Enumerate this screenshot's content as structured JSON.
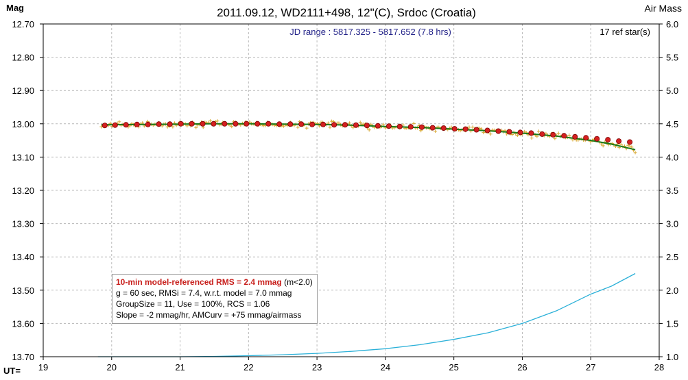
{
  "chart_data": {
    "type": "scatter",
    "title": "2011.09.12, WD2111+498, 12\"(C), Srdoc (Croatia)",
    "subtitle": "JD range : 5817.325 - 5817.652 (7.8 hrs)",
    "ref_stars": "17 ref star(s)",
    "ylabel": "Mag",
    "y2label": "Air Mass",
    "xlabel": "UT=",
    "xlim": [
      19,
      28
    ],
    "ylim": [
      12.7,
      13.7
    ],
    "y_reversed": true,
    "y2lim": [
      1.0,
      6.0
    ],
    "grid": true,
    "x_ticks": [
      "19",
      "20",
      "21",
      "22",
      "23",
      "24",
      "25",
      "26",
      "27",
      "28"
    ],
    "y_ticks": [
      "12.70",
      "12.80",
      "12.90",
      "13.00",
      "13.10",
      "13.20",
      "13.30",
      "13.40",
      "13.50",
      "13.60",
      "13.70"
    ],
    "y2_ticks": [
      "6.0",
      "5.5",
      "5.0",
      "4.5",
      "4.0",
      "3.5",
      "3.0",
      "2.5",
      "2.0",
      "1.5",
      "1.0"
    ],
    "series": [
      {
        "kind": "binned_10min_averages",
        "color": "#d42020",
        "x": [
          19.9,
          20.05,
          20.21,
          20.37,
          20.53,
          20.69,
          20.85,
          21.01,
          21.17,
          21.33,
          21.49,
          21.65,
          21.81,
          21.97,
          22.13,
          22.29,
          22.45,
          22.61,
          22.77,
          22.93,
          23.09,
          23.25,
          23.41,
          23.57,
          23.73,
          23.89,
          24.05,
          24.21,
          24.37,
          24.53,
          24.69,
          24.85,
          25.01,
          25.17,
          25.33,
          25.49,
          25.65,
          25.81,
          25.97,
          26.13,
          26.29,
          26.45,
          26.61,
          26.77,
          26.93,
          27.09,
          27.25,
          27.41,
          27.57
        ],
        "y": [
          13.005,
          13.004,
          13.003,
          13.002,
          13.002,
          13.001,
          13.001,
          13.0,
          13.0,
          13.0,
          13.0,
          13.0,
          13.0,
          13.0,
          13.0,
          13.0,
          13.001,
          13.001,
          13.001,
          13.002,
          13.002,
          13.003,
          13.003,
          13.004,
          13.005,
          13.006,
          13.007,
          13.008,
          13.009,
          13.01,
          13.012,
          13.013,
          13.015,
          13.016,
          13.018,
          13.02,
          13.022,
          13.024,
          13.026,
          13.028,
          13.031,
          13.033,
          13.036,
          13.039,
          13.042,
          13.045,
          13.048,
          13.052,
          13.055
        ]
      },
      {
        "kind": "model_fit",
        "color": "#1a7a1a",
        "x": [
          19.85,
          20.5,
          21.0,
          21.5,
          22.0,
          22.5,
          23.0,
          23.5,
          24.0,
          24.5,
          25.0,
          25.5,
          26.0,
          26.5,
          27.0,
          27.3,
          27.65
        ],
        "y": [
          13.003,
          13.002,
          13.001,
          13.0,
          13.0,
          13.001,
          13.002,
          13.004,
          13.008,
          13.011,
          13.016,
          13.021,
          13.028,
          13.037,
          13.05,
          13.061,
          13.078
        ]
      },
      {
        "kind": "air_mass",
        "axis": "right",
        "color": "#2ab0d8",
        "x": [
          19.8,
          20.5,
          21.0,
          21.5,
          22.0,
          22.5,
          23.0,
          23.5,
          24.0,
          24.5,
          25.0,
          25.5,
          26.0,
          26.5,
          27.0,
          27.3,
          27.65
        ],
        "y": [
          1.0,
          1.0,
          1.0,
          1.005,
          1.015,
          1.03,
          1.05,
          1.08,
          1.12,
          1.18,
          1.26,
          1.36,
          1.5,
          1.69,
          1.94,
          2.06,
          2.25
        ]
      },
      {
        "kind": "individual_observations",
        "color": "#d8a830",
        "x_start": 19.85,
        "x_end": 27.65,
        "count": 300,
        "scatter_rms_mmag": 7.4
      }
    ]
  },
  "info": {
    "line1_bold": "10-min model-referenced RMS = 2.4 mmag",
    "line1_rest": " (m<2.0)",
    "line2": "g = 60 sec, RMSi = 7.4, w.r.t. model = 7.0 mmag",
    "line3": "GroupSize = 11, Use = 100%, RCS = 1.06",
    "line4": "Slope = -2 mmag/hr, AMCurv = +75 mmag/airmass"
  }
}
